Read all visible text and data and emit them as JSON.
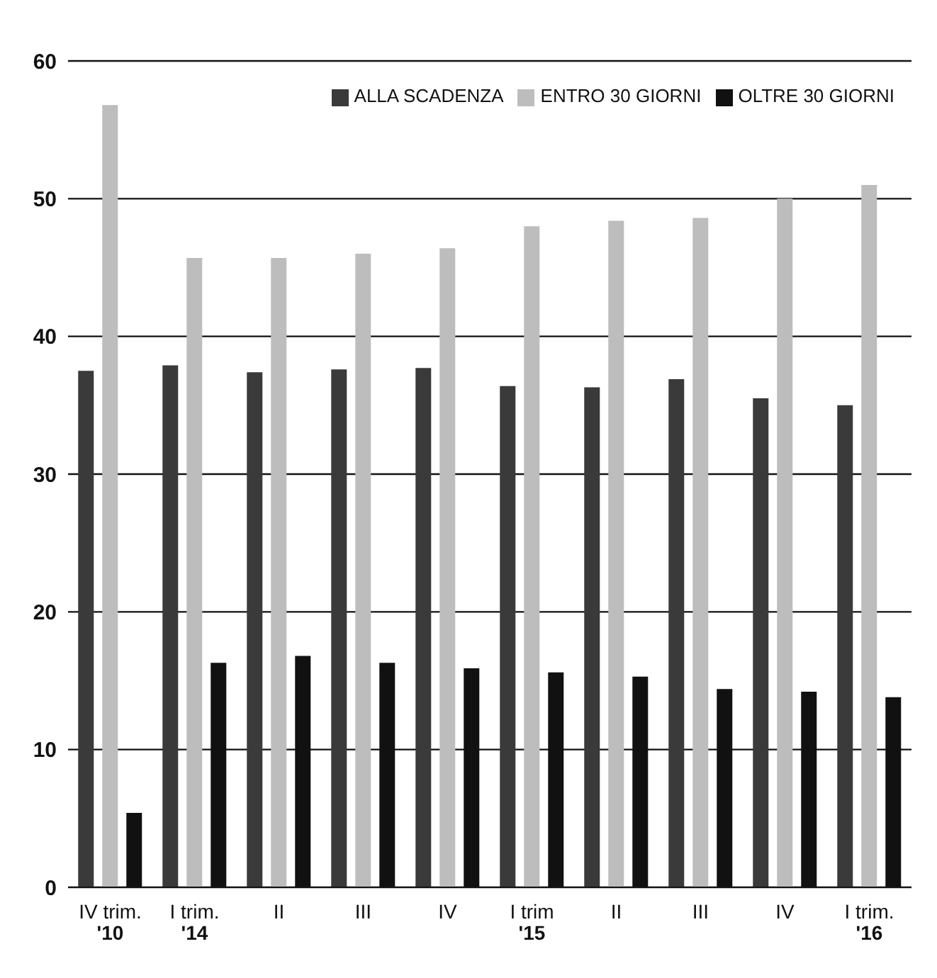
{
  "chart_data": {
    "type": "bar",
    "categories": [
      "IV trim.\n'10",
      "I trim.\n'14",
      "II",
      "III",
      "IV",
      "I trim\n'15",
      "II",
      "III",
      "IV",
      "I trim.\n'16"
    ],
    "series": [
      {
        "name": "ALLA SCADENZA",
        "color": "#3a3a3a",
        "values": [
          37.5,
          37.9,
          37.4,
          37.6,
          37.7,
          36.4,
          36.3,
          36.9,
          35.5,
          35.0
        ]
      },
      {
        "name": "ENTRO 30 GIORNI",
        "color": "#bdbdbd",
        "values": [
          56.8,
          45.7,
          45.7,
          46.0,
          46.4,
          48.0,
          48.4,
          48.6,
          50.0,
          51.0
        ]
      },
      {
        "name": "OLTRE 30 GIORNI",
        "color": "#111111",
        "values": [
          5.4,
          16.3,
          16.8,
          16.3,
          15.9,
          15.6,
          15.3,
          14.4,
          14.2,
          13.8
        ]
      }
    ],
    "ylim": [
      0,
      60
    ],
    "yticks": [
      0,
      10,
      20,
      30,
      40,
      50,
      60
    ],
    "grid": "y",
    "legend": "top right"
  }
}
